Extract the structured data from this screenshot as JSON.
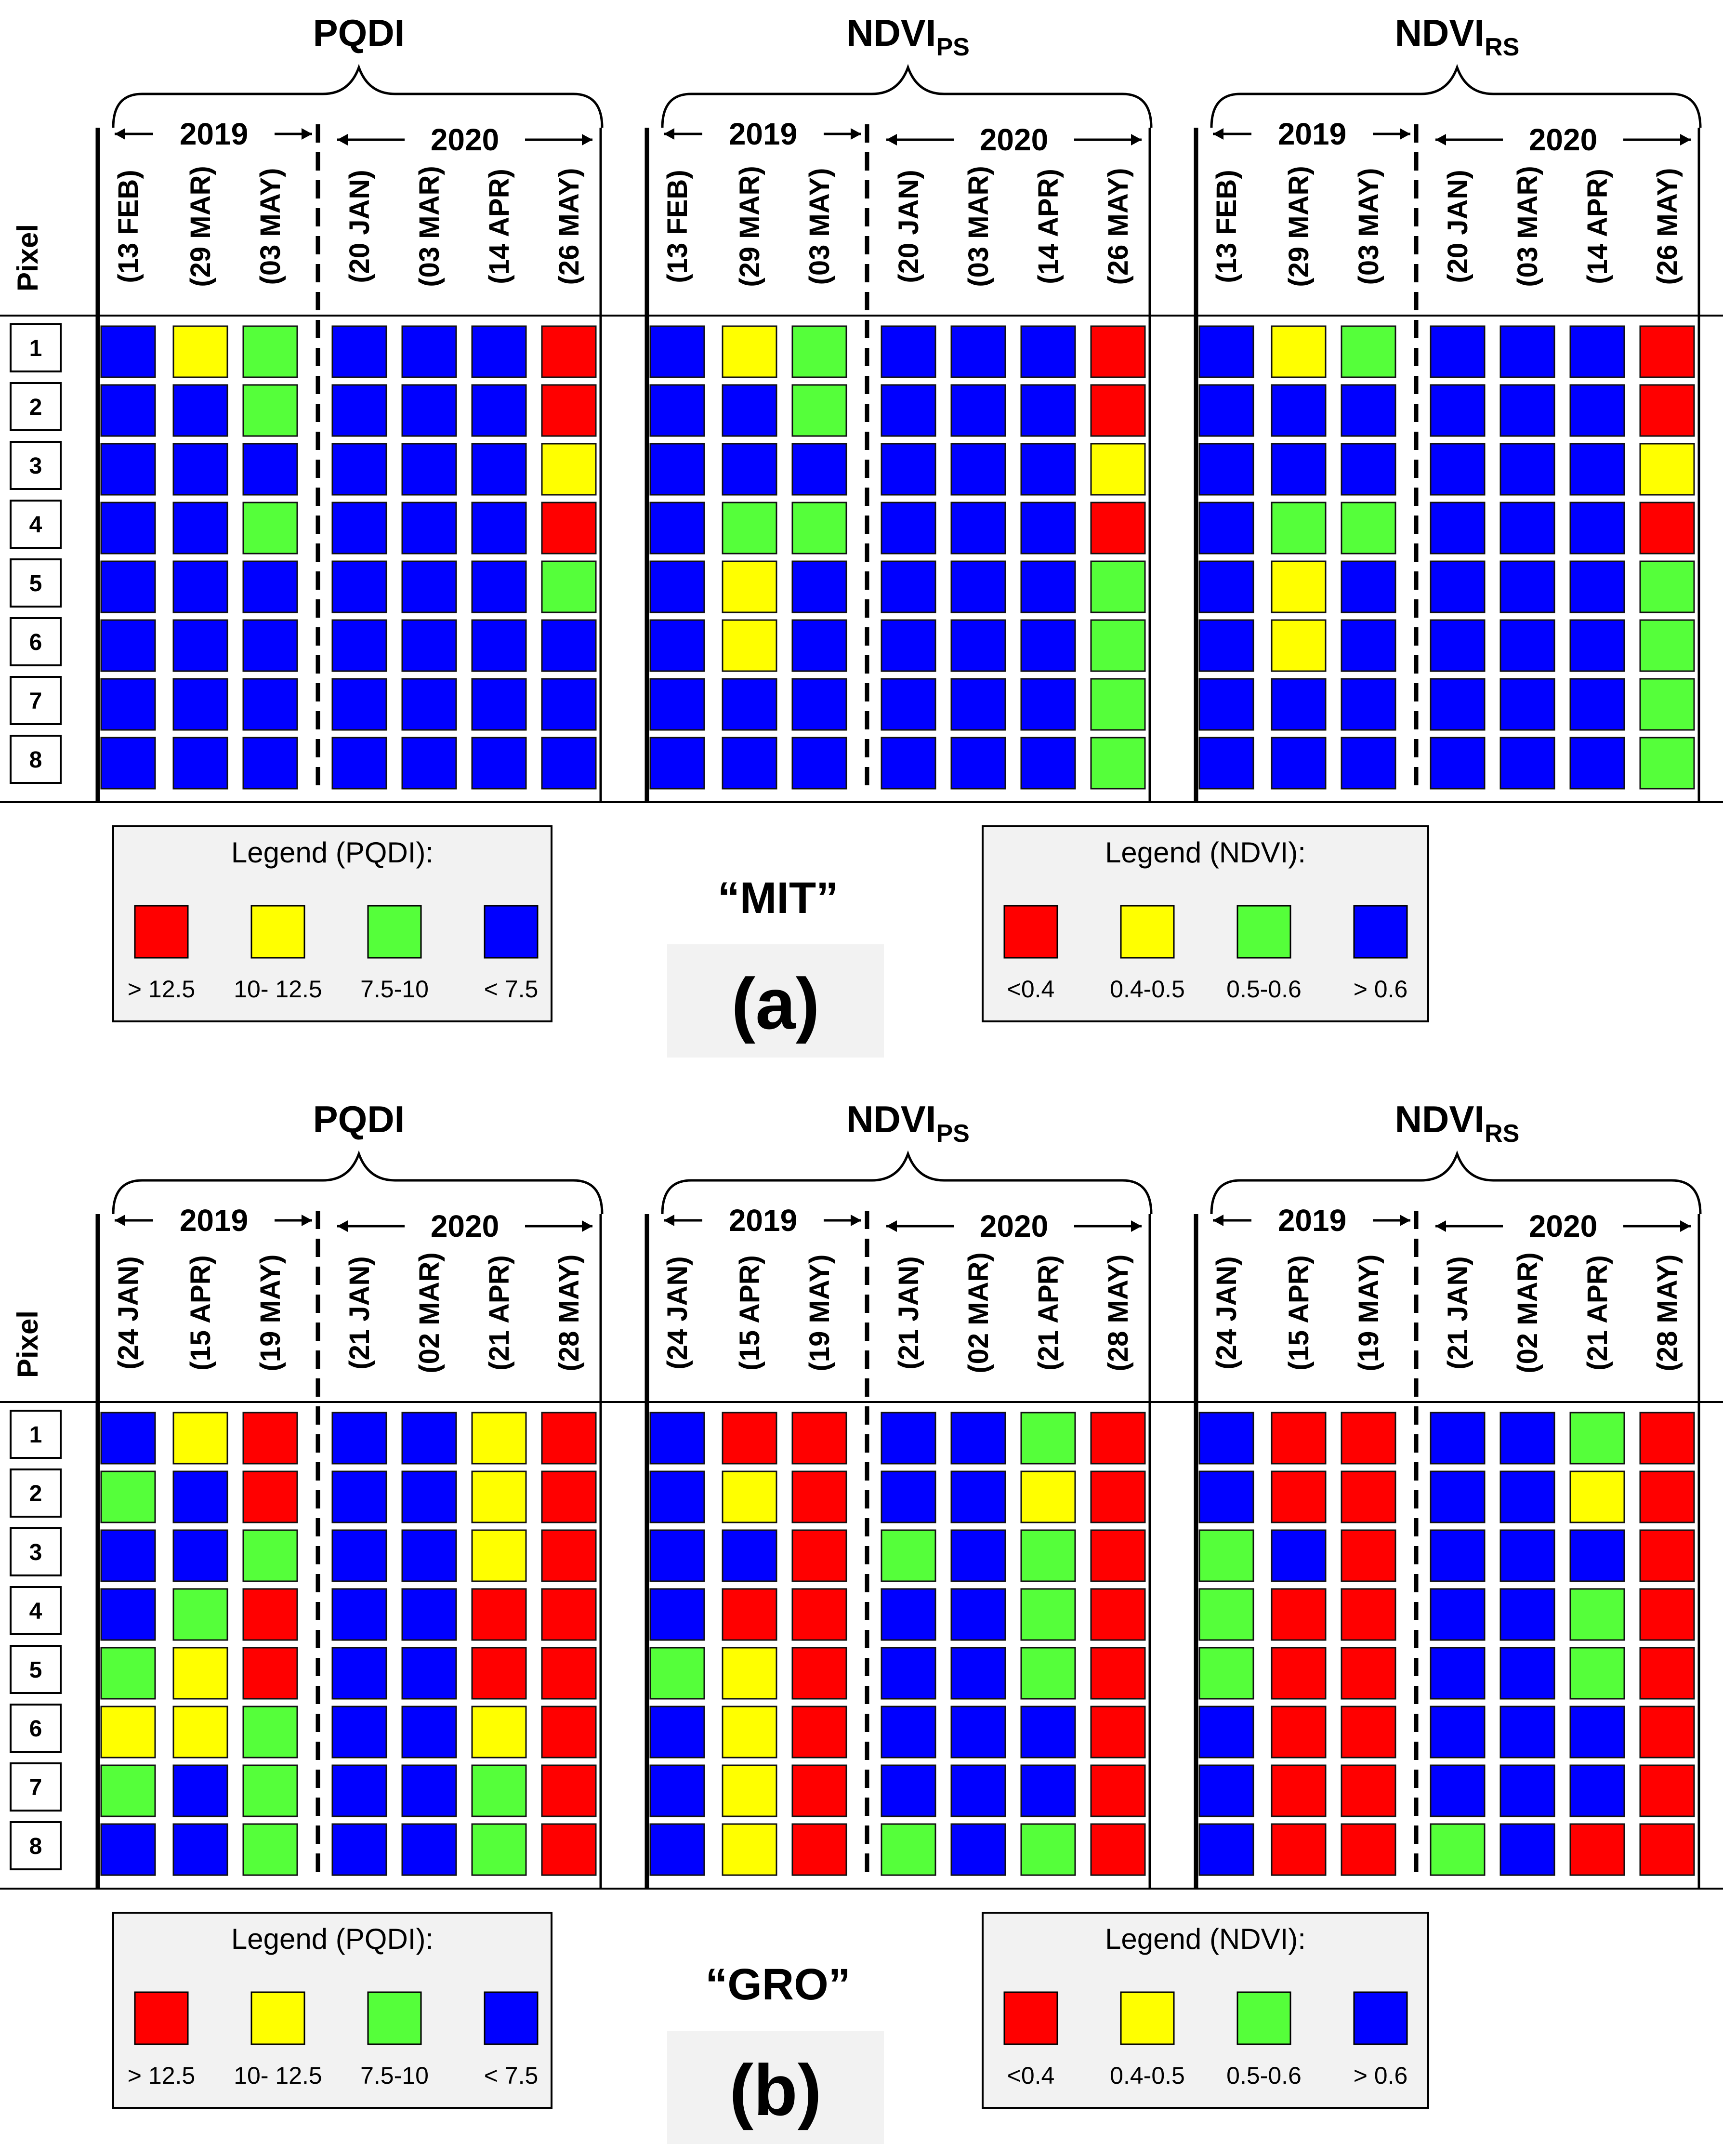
{
  "colors": {
    "red": "#ff0000",
    "yellow": "#ffff00",
    "green": "#55ff3a",
    "blue": "#0000ff"
  },
  "chart_data": [
    {
      "type": "heatmap",
      "site": "“MIT”",
      "panel_label": "(a)",
      "row_header": "Pixel",
      "rows": [
        "1",
        "2",
        "3",
        "4",
        "5",
        "6",
        "7",
        "8"
      ],
      "years": [
        "2019",
        "2020"
      ],
      "dates_2019": [
        "(13 FEB)",
        "(29 MAR)",
        "(03 MAY)"
      ],
      "dates_2020": [
        "(20 JAN)",
        "(03 MAR)",
        "(14 APR)",
        "(26 MAY)"
      ],
      "indices": [
        {
          "name": "PQDI",
          "name_sub": "",
          "matrix": [
            [
              "blue",
              "yellow",
              "green",
              "blue",
              "blue",
              "blue",
              "red"
            ],
            [
              "blue",
              "blue",
              "green",
              "blue",
              "blue",
              "blue",
              "red"
            ],
            [
              "blue",
              "blue",
              "blue",
              "blue",
              "blue",
              "blue",
              "yellow"
            ],
            [
              "blue",
              "blue",
              "green",
              "blue",
              "blue",
              "blue",
              "red"
            ],
            [
              "blue",
              "blue",
              "blue",
              "blue",
              "blue",
              "blue",
              "green"
            ],
            [
              "blue",
              "blue",
              "blue",
              "blue",
              "blue",
              "blue",
              "blue"
            ],
            [
              "blue",
              "blue",
              "blue",
              "blue",
              "blue",
              "blue",
              "blue"
            ],
            [
              "blue",
              "blue",
              "blue",
              "blue",
              "blue",
              "blue",
              "blue"
            ]
          ]
        },
        {
          "name": "NDVI",
          "name_sub": "PS",
          "matrix": [
            [
              "blue",
              "yellow",
              "green",
              "blue",
              "blue",
              "blue",
              "red"
            ],
            [
              "blue",
              "blue",
              "green",
              "blue",
              "blue",
              "blue",
              "red"
            ],
            [
              "blue",
              "blue",
              "blue",
              "blue",
              "blue",
              "blue",
              "yellow"
            ],
            [
              "blue",
              "green",
              "green",
              "blue",
              "blue",
              "blue",
              "red"
            ],
            [
              "blue",
              "yellow",
              "blue",
              "blue",
              "blue",
              "blue",
              "green"
            ],
            [
              "blue",
              "yellow",
              "blue",
              "blue",
              "blue",
              "blue",
              "green"
            ],
            [
              "blue",
              "blue",
              "blue",
              "blue",
              "blue",
              "blue",
              "green"
            ],
            [
              "blue",
              "blue",
              "blue",
              "blue",
              "blue",
              "blue",
              "green"
            ]
          ]
        },
        {
          "name": "NDVI",
          "name_sub": "RS",
          "matrix": [
            [
              "blue",
              "yellow",
              "green",
              "blue",
              "blue",
              "blue",
              "red"
            ],
            [
              "blue",
              "blue",
              "blue",
              "blue",
              "blue",
              "blue",
              "red"
            ],
            [
              "blue",
              "blue",
              "blue",
              "blue",
              "blue",
              "blue",
              "yellow"
            ],
            [
              "blue",
              "green",
              "green",
              "blue",
              "blue",
              "blue",
              "red"
            ],
            [
              "blue",
              "yellow",
              "blue",
              "blue",
              "blue",
              "blue",
              "green"
            ],
            [
              "blue",
              "yellow",
              "blue",
              "blue",
              "blue",
              "blue",
              "green"
            ],
            [
              "blue",
              "blue",
              "blue",
              "blue",
              "blue",
              "blue",
              "green"
            ],
            [
              "blue",
              "blue",
              "blue",
              "blue",
              "blue",
              "blue",
              "green"
            ]
          ]
        }
      ],
      "legends": [
        {
          "title": "Legend (PQDI):",
          "items": [
            {
              "color": "red",
              "label": "> 12.5"
            },
            {
              "color": "yellow",
              "label": "10- 12.5"
            },
            {
              "color": "green",
              "label": "7.5-10"
            },
            {
              "color": "blue",
              "label": "< 7.5"
            }
          ]
        },
        {
          "title": "Legend (NDVI):",
          "items": [
            {
              "color": "red",
              "label": "<0.4"
            },
            {
              "color": "yellow",
              "label": "0.4-0.5"
            },
            {
              "color": "green",
              "label": "0.5-0.6"
            },
            {
              "color": "blue",
              "label": "> 0.6"
            }
          ]
        }
      ]
    },
    {
      "type": "heatmap",
      "site": "“GRO”",
      "panel_label": "(b)",
      "row_header": "Pixel",
      "rows": [
        "1",
        "2",
        "3",
        "4",
        "5",
        "6",
        "7",
        "8"
      ],
      "years": [
        "2019",
        "2020"
      ],
      "dates_2019": [
        "(24 JAN)",
        "(15 APR)",
        "(19 MAY)"
      ],
      "dates_2020": [
        "(21 JAN)",
        "(02 MAR)",
        "(21 APR)",
        "(28 MAY)"
      ],
      "indices": [
        {
          "name": "PQDI",
          "name_sub": "",
          "matrix": [
            [
              "blue",
              "yellow",
              "red",
              "blue",
              "blue",
              "yellow",
              "red"
            ],
            [
              "green",
              "blue",
              "red",
              "blue",
              "blue",
              "yellow",
              "red"
            ],
            [
              "blue",
              "blue",
              "green",
              "blue",
              "blue",
              "yellow",
              "red"
            ],
            [
              "blue",
              "green",
              "red",
              "blue",
              "blue",
              "red",
              "red"
            ],
            [
              "green",
              "yellow",
              "red",
              "blue",
              "blue",
              "red",
              "red"
            ],
            [
              "yellow",
              "yellow",
              "green",
              "blue",
              "blue",
              "yellow",
              "red"
            ],
            [
              "green",
              "blue",
              "green",
              "blue",
              "blue",
              "green",
              "red"
            ],
            [
              "blue",
              "blue",
              "green",
              "blue",
              "blue",
              "green",
              "red"
            ]
          ]
        },
        {
          "name": "NDVI",
          "name_sub": "PS",
          "matrix": [
            [
              "blue",
              "red",
              "red",
              "blue",
              "blue",
              "green",
              "red"
            ],
            [
              "blue",
              "yellow",
              "red",
              "blue",
              "blue",
              "yellow",
              "red"
            ],
            [
              "blue",
              "blue",
              "red",
              "green",
              "blue",
              "green",
              "red"
            ],
            [
              "blue",
              "red",
              "red",
              "blue",
              "blue",
              "green",
              "red"
            ],
            [
              "green",
              "yellow",
              "red",
              "blue",
              "blue",
              "green",
              "red"
            ],
            [
              "blue",
              "yellow",
              "red",
              "blue",
              "blue",
              "blue",
              "red"
            ],
            [
              "blue",
              "yellow",
              "red",
              "blue",
              "blue",
              "blue",
              "red"
            ],
            [
              "blue",
              "yellow",
              "red",
              "green",
              "blue",
              "green",
              "red"
            ]
          ]
        },
        {
          "name": "NDVI",
          "name_sub": "RS",
          "matrix": [
            [
              "blue",
              "red",
              "red",
              "blue",
              "blue",
              "green",
              "red"
            ],
            [
              "blue",
              "red",
              "red",
              "blue",
              "blue",
              "yellow",
              "red"
            ],
            [
              "green",
              "blue",
              "red",
              "blue",
              "blue",
              "blue",
              "red"
            ],
            [
              "green",
              "red",
              "red",
              "blue",
              "blue",
              "green",
              "red"
            ],
            [
              "green",
              "red",
              "red",
              "blue",
              "blue",
              "green",
              "red"
            ],
            [
              "blue",
              "red",
              "red",
              "blue",
              "blue",
              "blue",
              "red"
            ],
            [
              "blue",
              "red",
              "red",
              "blue",
              "blue",
              "blue",
              "red"
            ],
            [
              "blue",
              "red",
              "red",
              "green",
              "blue",
              "red",
              "red"
            ]
          ]
        }
      ],
      "legends": [
        {
          "title": "Legend (PQDI):",
          "items": [
            {
              "color": "red",
              "label": "> 12.5"
            },
            {
              "color": "yellow",
              "label": "10- 12.5"
            },
            {
              "color": "green",
              "label": "7.5-10"
            },
            {
              "color": "blue",
              "label": "< 7.5"
            }
          ]
        },
        {
          "title": "Legend (NDVI):",
          "items": [
            {
              "color": "red",
              "label": "<0.4"
            },
            {
              "color": "yellow",
              "label": "0.4-0.5"
            },
            {
              "color": "green",
              "label": "0.5-0.6"
            },
            {
              "color": "blue",
              "label": "> 0.6"
            }
          ]
        }
      ]
    }
  ]
}
